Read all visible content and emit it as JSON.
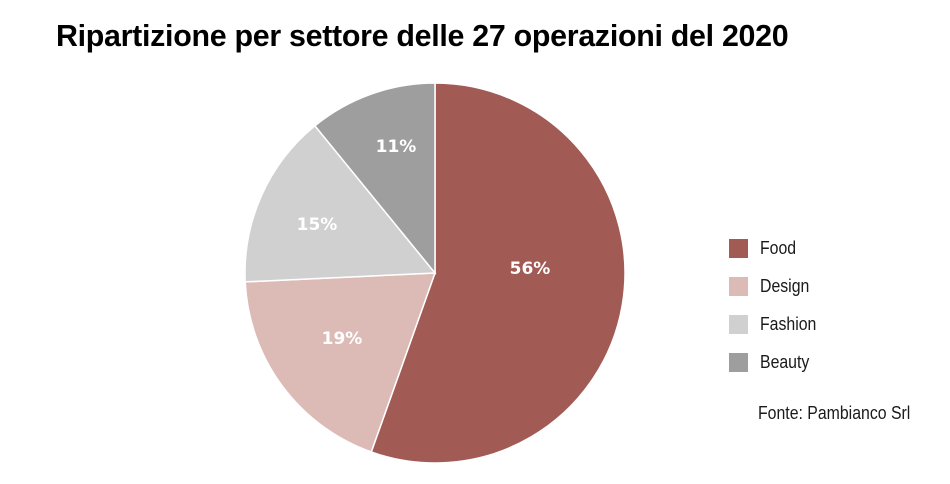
{
  "chart_data": {
    "type": "pie",
    "title": "Ripartizione per settore delle 27 operazioni del 2020",
    "categories": [
      "Food",
      "Design",
      "Fashion",
      "Beauty"
    ],
    "values": [
      56,
      19,
      15,
      11
    ],
    "labels": [
      "56%",
      "19%",
      "15%",
      "11%"
    ],
    "colors": [
      "#a25a55",
      "#dcbbb7",
      "#d0d0d0",
      "#9e9e9e"
    ],
    "start_angle": "top (12 o'clock), clockwise",
    "legend_position": "right",
    "source": "Fonte: Pambianco Srl"
  },
  "title": "Ripartizione per settore delle 27 operazioni del 2020",
  "legend": [
    {
      "label": "Food",
      "color": "#a25a55"
    },
    {
      "label": "Design",
      "color": "#dcbbb7"
    },
    {
      "label": "Fashion",
      "color": "#d0d0d0"
    },
    {
      "label": "Beauty",
      "color": "#9e9e9e"
    }
  ],
  "slices": [
    {
      "label": "56%"
    },
    {
      "label": "19%"
    },
    {
      "label": "15%"
    },
    {
      "label": "11%"
    }
  ],
  "source": "Fonte: Pambianco Srl"
}
